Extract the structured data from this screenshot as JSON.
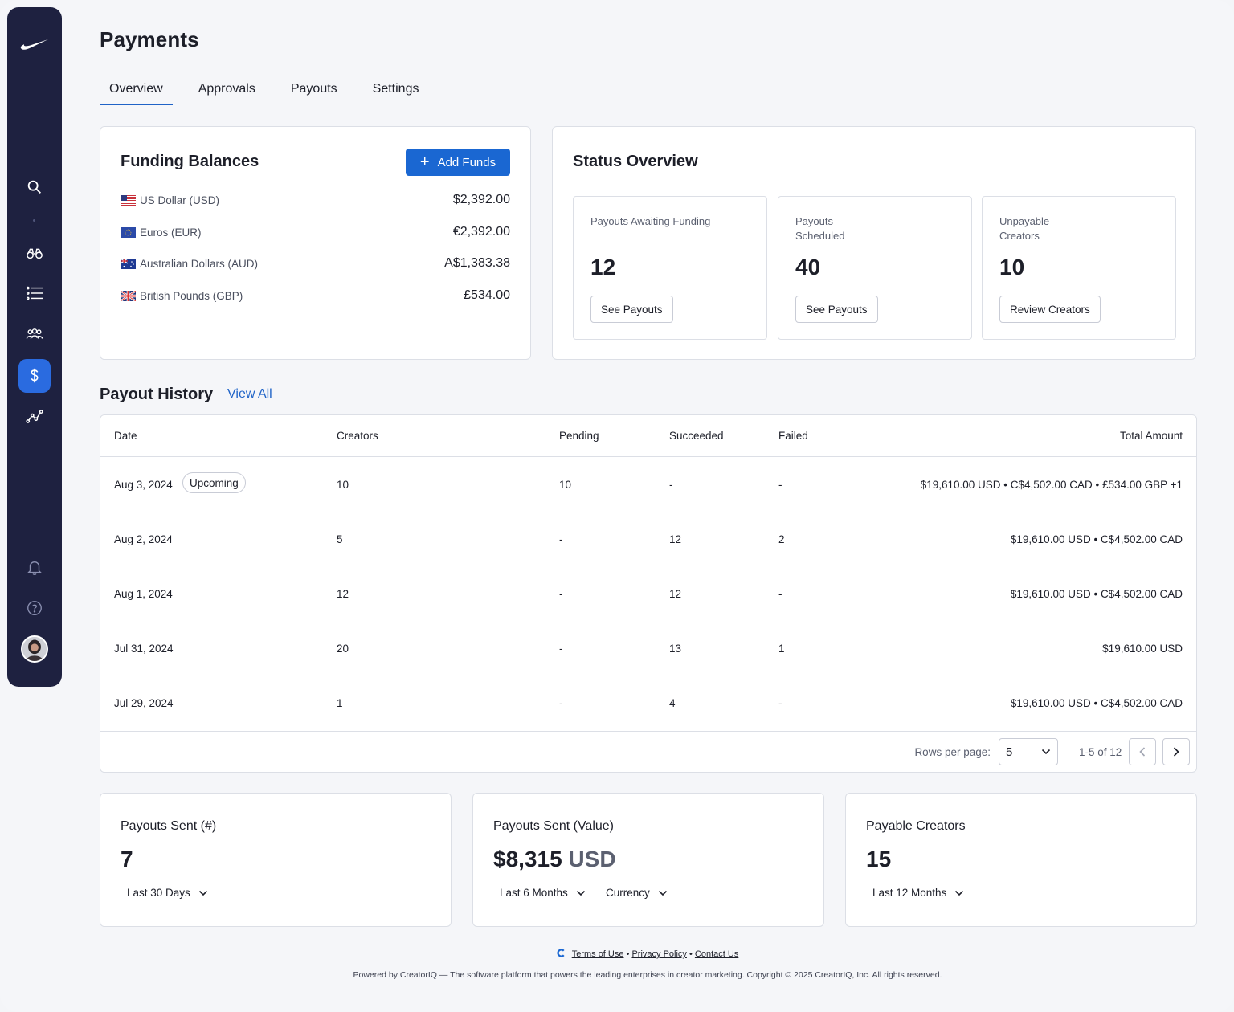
{
  "page": {
    "title": "Payments"
  },
  "tabs": [
    {
      "label": "Overview",
      "active": true
    },
    {
      "label": "Approvals"
    },
    {
      "label": "Payouts"
    },
    {
      "label": "Settings"
    }
  ],
  "sidebar": {
    "items": [
      {
        "icon": "search-icon"
      },
      {
        "icon": "binoculars-icon"
      },
      {
        "icon": "list-icon"
      },
      {
        "icon": "users-icon"
      },
      {
        "icon": "dollar-icon",
        "active": true
      },
      {
        "icon": "analytics-icon"
      },
      {
        "icon": "bell-icon"
      },
      {
        "icon": "help-icon"
      }
    ]
  },
  "funding": {
    "title": "Funding Balances",
    "add_label": "Add Funds",
    "balances": [
      {
        "currency": "US Dollar (USD)",
        "amount": "$2,392.00",
        "flag": "us"
      },
      {
        "currency": "Euros (EUR)",
        "amount": "€2,392.00",
        "flag": "eu"
      },
      {
        "currency": "Australian Dollars (AUD)",
        "amount": "A$1,383.38",
        "flag": "au"
      },
      {
        "currency": "British Pounds (GBP)",
        "amount": "£534.00",
        "flag": "gb"
      }
    ]
  },
  "status": {
    "title": "Status Overview",
    "cards": [
      {
        "label": "Payouts Awaiting Funding",
        "value": "12",
        "button": "See Payouts"
      },
      {
        "label": "Payouts Scheduled",
        "value": "40",
        "button": "See Payouts"
      },
      {
        "label": "Unpayable Creators",
        "value": "10",
        "button": "Review Creators"
      }
    ]
  },
  "history": {
    "title": "Payout History",
    "view_all": "View All",
    "columns": {
      "date": "Date",
      "creators": "Creators",
      "pending": "Pending",
      "succeeded": "Succeeded",
      "failed": "Failed",
      "total": "Total Amount"
    },
    "rows": [
      {
        "date": "Aug 3, 2024",
        "badge": "Upcoming",
        "creators": "10",
        "pending": "10",
        "succeeded": "-",
        "failed": "-",
        "total": "$19,610.00 USD • C$4,502.00 CAD • £534.00 GBP +1"
      },
      {
        "date": "Aug 2, 2024",
        "creators": "5",
        "pending": "-",
        "succeeded": "12",
        "failed": "2",
        "total": "$19,610.00 USD • C$4,502.00 CAD"
      },
      {
        "date": "Aug 1, 2024",
        "creators": "12",
        "pending": "-",
        "succeeded": "12",
        "failed": "-",
        "total": "$19,610.00 USD • C$4,502.00 CAD"
      },
      {
        "date": "Jul 31, 2024",
        "creators": "20",
        "pending": "-",
        "succeeded": "13",
        "failed": "1",
        "total": "$19,610.00 USD"
      },
      {
        "date": "Jul 29, 2024",
        "creators": "1",
        "pending": "-",
        "succeeded": "4",
        "failed": "-",
        "total": "$19,610.00 USD • C$4,502.00 CAD"
      }
    ],
    "pagination": {
      "rows_label": "Rows per page:",
      "rows_value": "5",
      "range": "1-5 of 12"
    }
  },
  "metrics": [
    {
      "title": "Payouts Sent (#)",
      "value": "7",
      "unit": "",
      "dropdowns": [
        "Last 30 Days"
      ]
    },
    {
      "title": "Payouts Sent (Value)",
      "value": "$8,315",
      "unit": "USD",
      "dropdowns": [
        "Last 6 Months",
        "Currency"
      ]
    },
    {
      "title": "Payable Creators",
      "value": "15",
      "unit": "",
      "dropdowns": [
        "Last 12 Months"
      ]
    }
  ],
  "footer": {
    "terms": "Terms of Use",
    "privacy": "Privacy Policy",
    "contact": "Contact Us",
    "copyright": "Powered by CreatorIQ — The software platform that powers the leading enterprises in creator marketing. Copyright © 2025 CreatorIQ, Inc. All rights reserved."
  },
  "colors": {
    "sidebar": "#1e2140",
    "accent": "#1a67d2",
    "active_icon": "#2a6be0"
  }
}
